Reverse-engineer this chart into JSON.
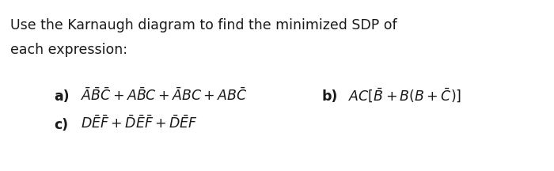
{
  "title_line1": "Use the Karnaugh diagram to find the minimized SDP of",
  "title_line2": "each expression:",
  "expr_a_label": "\\textbf{a)}",
  "expr_a": "$\\bar{A}\\bar{B}\\bar{C} + A\\bar{B}C + \\bar{A}BC + AB\\bar{C}$",
  "expr_b_label": "\\textbf{b)}",
  "expr_b": "$AC[\\bar{B} + B(B + \\bar{C})]$",
  "expr_c_label": "\\textbf{c)}",
  "expr_c": "$D\\bar{E}\\bar{F} + \\bar{D}\\bar{E}\\bar{F} + \\bar{D}\\bar{E}F$",
  "bg_color": "#ffffff",
  "text_color": "#1a1a1a",
  "title_fontsize": 12.5,
  "expr_fontsize": 12.5
}
